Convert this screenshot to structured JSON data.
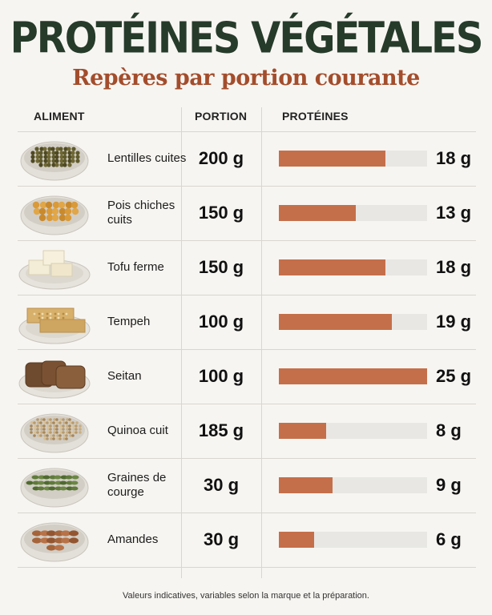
{
  "header": {
    "title": "PROTÉINES VÉGÉTALES",
    "subtitle": "Repères par portion courante"
  },
  "columns": [
    "ALIMENT",
    "PORTION",
    "PROTÉINES"
  ],
  "footnote": "Valeurs indicatives, variables selon la marque et la préparation.",
  "colors": {
    "title": "#263b2a",
    "subtitle": "#a34d2c",
    "bar": "#c56f4a",
    "track": "#e8e7e3"
  },
  "chart_data": {
    "type": "bar",
    "orientation": "horizontal",
    "title": "PROTÉINES VÉGÉTALES",
    "subtitle": "Repères par portion courante",
    "xlim": [
      0,
      25
    ],
    "unit": "g",
    "categories": [
      "Lentilles cuites",
      "Pois chiches cuits",
      "Tofu ferme",
      "Tempeh",
      "Seitan",
      "Quinoa cuit",
      "Graines de courge",
      "Amandes"
    ],
    "portions": [
      "200 g",
      "150 g",
      "150 g",
      "100 g",
      "100 g",
      "185 g",
      "30 g",
      "30 g"
    ],
    "values": [
      18,
      13,
      18,
      19,
      25,
      8,
      9,
      6
    ],
    "value_labels": [
      "18 g",
      "13 g",
      "18 g",
      "19 g",
      "25 g",
      "8 g",
      "9 g",
      "6 g"
    ],
    "icons": [
      "lentils-bowl-icon",
      "chickpeas-bowl-icon",
      "tofu-plate-icon",
      "tempeh-plate-icon",
      "seitan-plate-icon",
      "quinoa-bowl-icon",
      "pumpkin-seeds-bowl-icon",
      "almonds-bowl-icon"
    ]
  }
}
